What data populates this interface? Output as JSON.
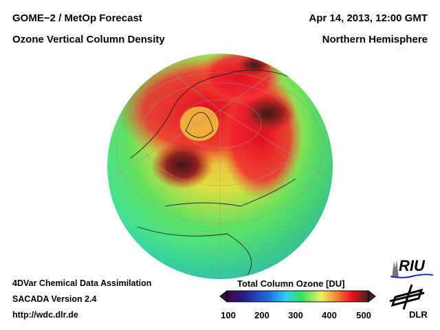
{
  "header": {
    "title_left_1": "GOME−2 / MetOp Forecast",
    "title_left_2": "Ozone Vertical Column Density",
    "title_right_1": "Apr 14, 2013, 12:00 GMT",
    "title_right_2": "Northern Hemisphere"
  },
  "footer": {
    "line1": "4DVar Chemical Data Assimilation",
    "line2": "SACADA Version 2.4",
    "line3": "http://wdc.dlr.de"
  },
  "colorbar": {
    "title": "Total Column Ozone [DU]",
    "ticks": [
      "100",
      "200",
      "300",
      "400",
      "500"
    ],
    "range": [
      100,
      500
    ],
    "colors": [
      "#3a0a3a",
      "#2a1a8a",
      "#2060e0",
      "#30d0f0",
      "#30e060",
      "#f0f060",
      "#f08030",
      "#f01020",
      "#a01020",
      "#402020"
    ]
  },
  "logos": {
    "riu": "RIU",
    "dlr": "DLR"
  }
}
